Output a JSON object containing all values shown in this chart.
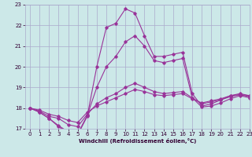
{
  "xlabel": "Windchill (Refroidissement éolien,°C)",
  "bg_color": "#cce8e8",
  "grid_color": "#aaaacc",
  "line_color": "#993399",
  "xlim": [
    -0.5,
    23
  ],
  "ylim": [
    17,
    23
  ],
  "yticks": [
    17,
    18,
    19,
    20,
    21,
    22,
    23
  ],
  "xticks": [
    0,
    1,
    2,
    3,
    4,
    5,
    6,
    7,
    8,
    9,
    10,
    11,
    12,
    13,
    14,
    15,
    16,
    17,
    18,
    19,
    20,
    21,
    22,
    23
  ],
  "line1_x": [
    0,
    1,
    2,
    3,
    4,
    5,
    6,
    7,
    8,
    9,
    10,
    11,
    12,
    13,
    14,
    15,
    16,
    17,
    18,
    19,
    20,
    21,
    22,
    23
  ],
  "line1_y": [
    18.0,
    17.8,
    17.5,
    17.1,
    16.8,
    16.7,
    17.6,
    20.0,
    21.9,
    22.1,
    22.8,
    22.6,
    21.5,
    20.5,
    20.5,
    20.6,
    20.7,
    18.7,
    18.1,
    18.2,
    18.4,
    18.6,
    18.7,
    18.6
  ],
  "line2_x": [
    0,
    1,
    2,
    3,
    4,
    5,
    6,
    7,
    8,
    9,
    10,
    11,
    12,
    13,
    14,
    15,
    16,
    17,
    18,
    19,
    20,
    21,
    22,
    23
  ],
  "line2_y": [
    18.0,
    17.8,
    17.5,
    17.15,
    16.85,
    16.75,
    17.65,
    19.0,
    20.0,
    20.5,
    21.2,
    21.5,
    21.0,
    20.3,
    20.2,
    20.3,
    20.4,
    18.5,
    18.05,
    18.1,
    18.25,
    18.45,
    18.6,
    18.5
  ],
  "line3_x": [
    0,
    1,
    2,
    3,
    4,
    5,
    6,
    7,
    8,
    9,
    10,
    11,
    12,
    13,
    14,
    15,
    16,
    17,
    18,
    19,
    20,
    21,
    22,
    23
  ],
  "line3_y": [
    18.0,
    17.85,
    17.6,
    17.5,
    17.2,
    17.1,
    17.7,
    18.2,
    18.5,
    18.7,
    19.0,
    19.2,
    19.0,
    18.8,
    18.7,
    18.75,
    18.8,
    18.5,
    18.2,
    18.3,
    18.4,
    18.55,
    18.65,
    18.55
  ],
  "line4_x": [
    0,
    1,
    2,
    3,
    4,
    5,
    6,
    7,
    8,
    9,
    10,
    11,
    12,
    13,
    14,
    15,
    16,
    17,
    18,
    19,
    20,
    21,
    22,
    23
  ],
  "line4_y": [
    18.0,
    17.9,
    17.7,
    17.6,
    17.4,
    17.3,
    17.8,
    18.1,
    18.3,
    18.5,
    18.7,
    18.9,
    18.8,
    18.65,
    18.6,
    18.65,
    18.7,
    18.45,
    18.25,
    18.35,
    18.45,
    18.6,
    18.65,
    18.6
  ]
}
